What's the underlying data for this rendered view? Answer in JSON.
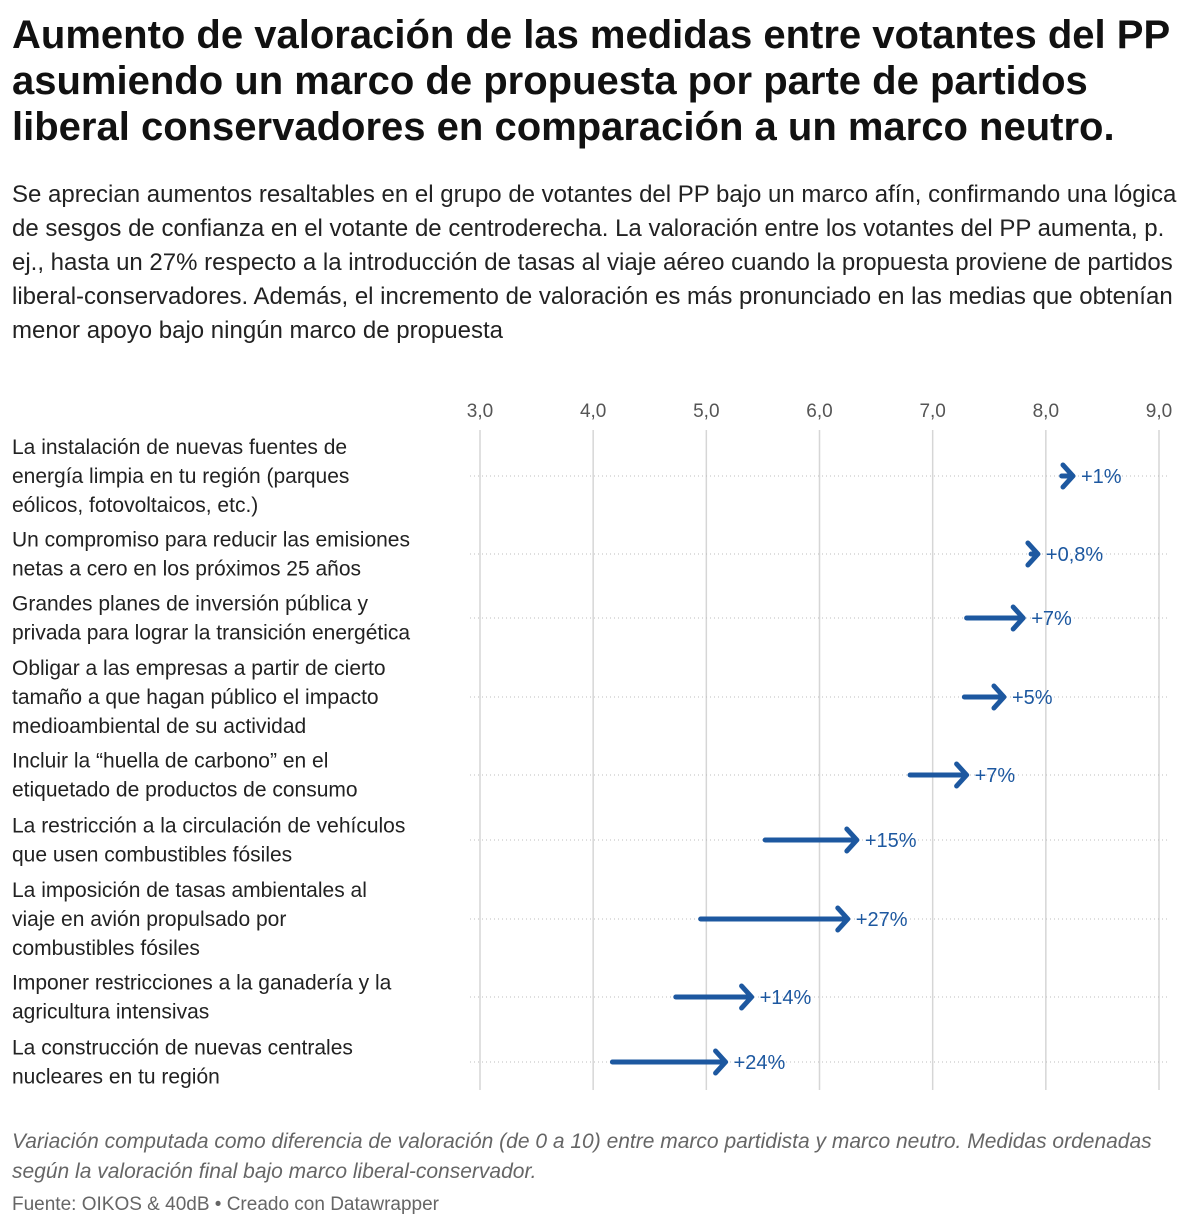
{
  "title": "Aumento de valoración de las medidas entre votantes del PP asumiendo un marco de propuesta por parte de partidos liberal conservadores en comparación a un marco neutro.",
  "subtitle": "Se aprecian aumentos resaltables en el grupo de votantes del PP bajo un marco afín, confirmando una lógica de sesgos de confianza en el votante de centroderecha. La valoración entre los votantes del PP aumenta, p. ej., hasta un 27% respecto a la introducción de tasas al viaje aéreo cuando la propuesta proviene de partidos liberal-conservadores. Además, el incremento de valoración es más pronunciado en las medias que obtenían menor apoyo bajo ningún marco de propuesta",
  "notes": "Variación computada como diferencia de valoración (de 0 a 10) entre marco partidista y marco neutro. Medidas ordenadas según la valoración final bajo marco liberal-conservador.",
  "source": "Fuente: OIKOS & 40dB • Creado con Datawrapper",
  "chart_data": {
    "type": "arrow",
    "xlim": [
      3.0,
      9.0
    ],
    "x_ticks": [
      "3,0",
      "4,0",
      "5,0",
      "6,0",
      "7,0",
      "8,0",
      "9,0"
    ],
    "arrow_color": "#1d58a0",
    "rows": [
      {
        "label_lines": [
          "La instalación de nuevas fuentes de",
          "energía limpia en tu región (parques",
          "eólicos, fotovoltaicos, etc.)"
        ],
        "start": 8.14,
        "end": 8.24,
        "change": "+1%"
      },
      {
        "label_lines": [
          "Un compromiso para reducir las emisiones",
          "netas a cero en los próximos 25 años"
        ],
        "start": 7.87,
        "end": 7.93,
        "change": "+0,8%"
      },
      {
        "label_lines": [
          "Grandes planes de inversión pública y",
          "privada para lograr la transición energética"
        ],
        "start": 7.3,
        "end": 7.8,
        "change": "+7%"
      },
      {
        "label_lines": [
          "Obligar a las empresas a partir de cierto",
          "tamaño a que hagan público el impacto",
          "medioambiental de su actividad"
        ],
        "start": 7.28,
        "end": 7.63,
        "change": "+5%"
      },
      {
        "label_lines": [
          "Incluir la “huella de carbono” en el",
          "etiquetado de productos de consumo"
        ],
        "start": 6.8,
        "end": 7.3,
        "change": "+7%"
      },
      {
        "label_lines": [
          "La restricción a la circulación de vehículos",
          "que usen combustibles fósiles"
        ],
        "start": 5.52,
        "end": 6.33,
        "change": "+15%"
      },
      {
        "label_lines": [
          "La imposición de tasas ambientales al",
          "viaje en avión propulsado por",
          "combustibles fósiles"
        ],
        "start": 4.95,
        "end": 6.25,
        "change": "+27%"
      },
      {
        "label_lines": [
          "Imponer restricciones a la ganadería y la",
          "agricultura intensivas"
        ],
        "start": 4.73,
        "end": 5.4,
        "change": "+14%"
      },
      {
        "label_lines": [
          "La construcción de nuevas centrales",
          "nucleares en tu región"
        ],
        "start": 4.17,
        "end": 5.17,
        "change": "+24%"
      }
    ]
  }
}
